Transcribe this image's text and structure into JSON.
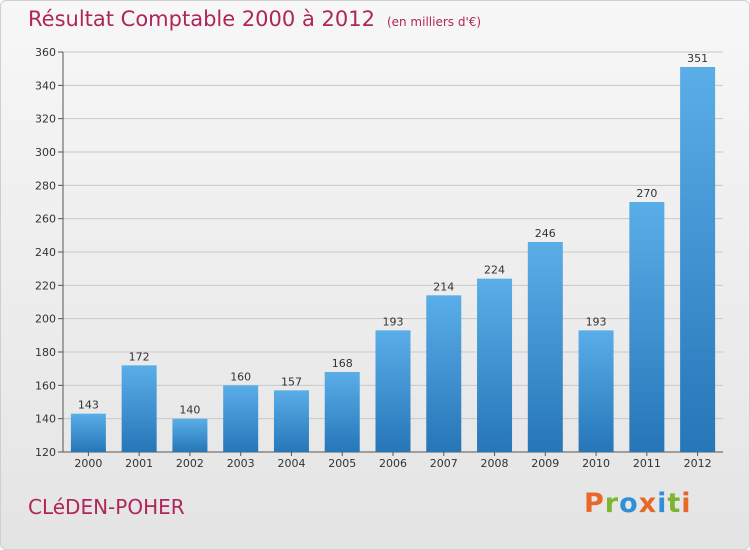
{
  "title": "Résultat Comptable 2000 à 2012",
  "subtitle": "(en milliers d'€)",
  "city": "CLéDEN-POHER",
  "logo": "Proxiti",
  "colors": {
    "title": "#b0255a",
    "bar_top": "#5aaee8",
    "bar_bottom": "#2676b8",
    "logo_letters": [
      "#e8682a",
      "#7cb52f",
      "#2f8fd8",
      "#e8682a",
      "#2f8fd8",
      "#7cb52f",
      "#e8682a"
    ]
  },
  "chart_data": {
    "type": "bar",
    "categories": [
      "2000",
      "2001",
      "2002",
      "2003",
      "2004",
      "2005",
      "2006",
      "2007",
      "2008",
      "2009",
      "2010",
      "2011",
      "2012"
    ],
    "values": [
      143,
      172,
      140,
      160,
      157,
      168,
      193,
      214,
      224,
      246,
      193,
      270,
      351
    ],
    "ylim": [
      120,
      360
    ],
    "yticks": [
      120,
      140,
      160,
      180,
      200,
      220,
      240,
      260,
      280,
      300,
      320,
      340,
      360
    ],
    "grid": true,
    "data_labels": true
  }
}
